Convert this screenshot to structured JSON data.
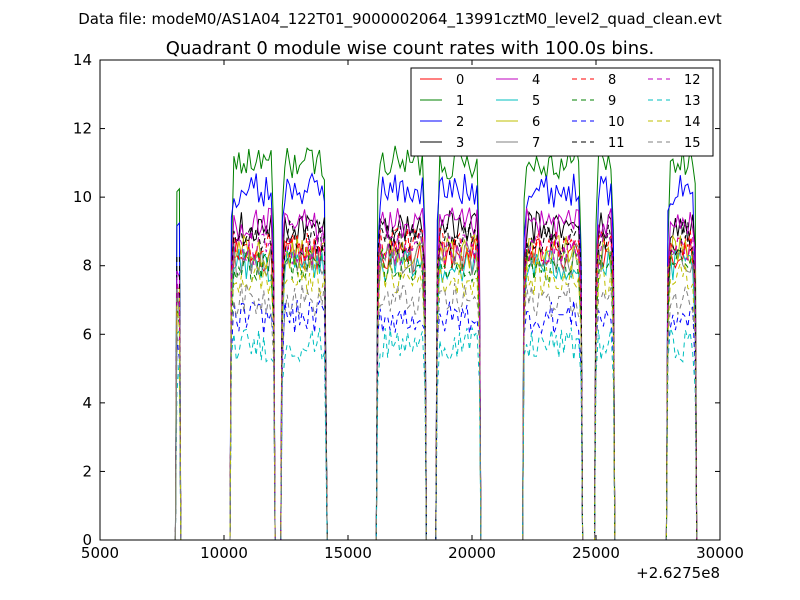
{
  "chart_data": {
    "type": "line",
    "suptitle": "Data file: modeM0/AS1A04_122T01_9000002064_13991cztM0_level2_quad_clean.evt",
    "title": "Quadrant 0 module wise count rates with 100.0s bins.",
    "xlabel": "",
    "ylabel": "",
    "x_offset_label": "+2.6275e8",
    "xlim": [
      5000,
      30000
    ],
    "ylim": [
      0,
      14
    ],
    "x_ticks": [
      5000,
      10000,
      15000,
      20000,
      25000,
      30000
    ],
    "y_ticks": [
      0,
      2,
      4,
      6,
      8,
      10,
      12,
      14
    ],
    "grid": false,
    "legend_placement": "top-right",
    "legend_columns": 4,
    "segments": [
      [
        8100,
        8200
      ],
      [
        10300,
        12000
      ],
      [
        12350,
        14100
      ],
      [
        16200,
        18100
      ],
      [
        18600,
        20300
      ],
      [
        22100,
        24400
      ],
      [
        25000,
        25700
      ],
      [
        27900,
        29000
      ]
    ],
    "series": [
      {
        "name": "0",
        "color": "#ff0000",
        "style": "solid",
        "level": 8.3
      },
      {
        "name": "1",
        "color": "#008000",
        "style": "solid",
        "level": 11.0
      },
      {
        "name": "2",
        "color": "#0000ff",
        "style": "solid",
        "level": 10.2
      },
      {
        "name": "3",
        "color": "#000000",
        "style": "solid",
        "level": 9.1
      },
      {
        "name": "4",
        "color": "#bf00bf",
        "style": "solid",
        "level": 9.2
      },
      {
        "name": "5",
        "color": "#00bfbf",
        "style": "solid",
        "level": 8.0
      },
      {
        "name": "6",
        "color": "#bfbf00",
        "style": "solid",
        "level": 8.4
      },
      {
        "name": "7",
        "color": "#808080",
        "style": "solid",
        "level": 8.2
      },
      {
        "name": "8",
        "color": "#ff0000",
        "style": "dashed",
        "level": 8.6
      },
      {
        "name": "9",
        "color": "#008000",
        "style": "dashed",
        "level": 8.0
      },
      {
        "name": "10",
        "color": "#0000ff",
        "style": "dashed",
        "level": 6.5
      },
      {
        "name": "11",
        "color": "#000000",
        "style": "dashed",
        "level": 8.8
      },
      {
        "name": "12",
        "color": "#bf00bf",
        "style": "dashed",
        "level": 8.5
      },
      {
        "name": "13",
        "color": "#00bfbf",
        "style": "dashed",
        "level": 5.7
      },
      {
        "name": "14",
        "color": "#bfbf00",
        "style": "dashed",
        "level": 7.6
      },
      {
        "name": "15",
        "color": "#808080",
        "style": "dashed",
        "level": 7.0
      }
    ]
  }
}
